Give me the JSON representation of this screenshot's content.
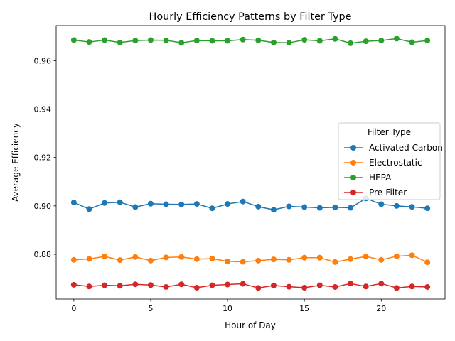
{
  "chart_data": {
    "type": "line",
    "title": "Hourly Efficiency Patterns by Filter Type",
    "xlabel": "Hour of Day",
    "ylabel": "Average Efficiency",
    "xlim": [
      -1.15,
      24.15
    ],
    "ylim": [
      0.8615,
      0.9745
    ],
    "xticks": [
      0,
      5,
      10,
      15,
      20
    ],
    "yticks": [
      0.88,
      0.9,
      0.92,
      0.94,
      0.96
    ],
    "ytick_labels": [
      "0.88",
      "0.90",
      "0.92",
      "0.94",
      "0.96"
    ],
    "grid": false,
    "legend": {
      "title": "Filter Type",
      "placement": "center-right"
    },
    "x": [
      0,
      1,
      2,
      3,
      4,
      5,
      6,
      7,
      8,
      9,
      10,
      11,
      12,
      13,
      14,
      15,
      16,
      17,
      18,
      19,
      20,
      21,
      22,
      23
    ],
    "series": [
      {
        "name": "Activated Carbon",
        "color": "#1f77b4",
        "values": [
          0.9014,
          0.8987,
          0.9012,
          0.9015,
          0.8995,
          0.9009,
          0.9007,
          0.9006,
          0.9008,
          0.899,
          0.9008,
          0.9018,
          0.8997,
          0.8984,
          0.8998,
          0.8995,
          0.8992,
          0.8994,
          0.8992,
          0.9031,
          0.9007,
          0.9,
          0.8996,
          0.899
        ]
      },
      {
        "name": "Electrostatic",
        "color": "#ff7f0e",
        "values": [
          0.8777,
          0.8781,
          0.8791,
          0.8776,
          0.8789,
          0.8774,
          0.8787,
          0.8789,
          0.878,
          0.8782,
          0.8771,
          0.8769,
          0.8774,
          0.8779,
          0.8777,
          0.8786,
          0.8786,
          0.8768,
          0.878,
          0.8791,
          0.8777,
          0.8792,
          0.8796,
          0.8767
        ]
      },
      {
        "name": "HEPA",
        "color": "#2ca02c",
        "values": [
          0.9685,
          0.9677,
          0.9685,
          0.9675,
          0.9683,
          0.9685,
          0.9684,
          0.9674,
          0.9683,
          0.9682,
          0.9682,
          0.9687,
          0.9684,
          0.9675,
          0.9674,
          0.9686,
          0.9682,
          0.969,
          0.9672,
          0.968,
          0.9683,
          0.9691,
          0.9676,
          0.9683
        ]
      },
      {
        "name": "Pre-Filter",
        "color": "#d62728",
        "values": [
          0.8674,
          0.8667,
          0.8672,
          0.867,
          0.8676,
          0.8673,
          0.8665,
          0.8676,
          0.8662,
          0.8672,
          0.8675,
          0.8678,
          0.8661,
          0.8671,
          0.8666,
          0.8662,
          0.8672,
          0.8665,
          0.8679,
          0.8667,
          0.8679,
          0.8661,
          0.8667,
          0.8665
        ]
      }
    ]
  }
}
